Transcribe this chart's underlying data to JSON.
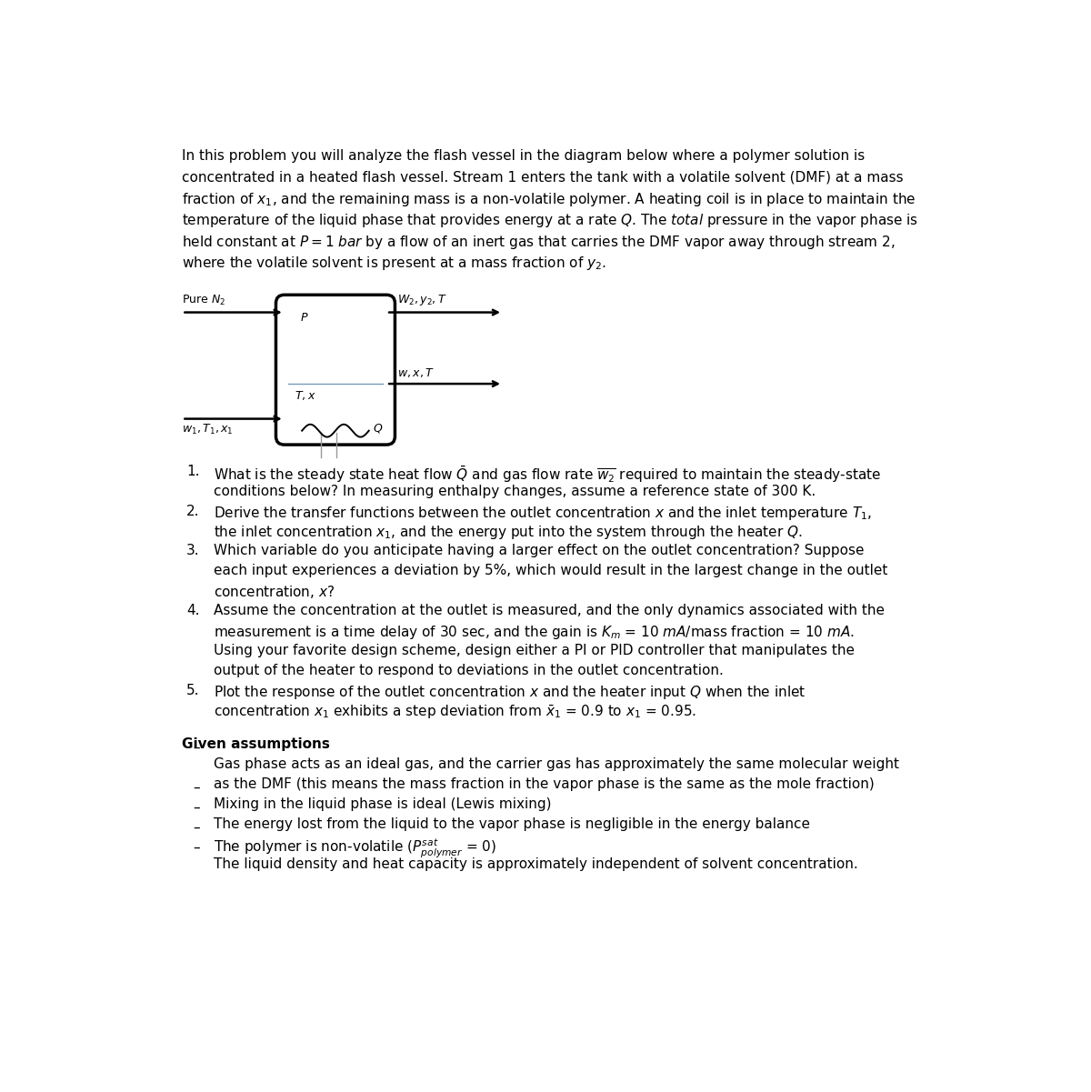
{
  "bg_color": "#ffffff",
  "text_color": "#000000",
  "fs_body": 11.0,
  "fs_small": 9.5,
  "fs_diagram": 9.0,
  "intro_lines": [
    "In this problem you will analyze the flash vessel in the diagram below where a polymer solution is",
    "concentrated in a heated flash vessel. Stream 1 enters the tank with a volatile solvent (DMF) at a mass",
    "fraction of $x_1$, and the remaining mass is a non-volatile polymer. A heating coil is in place to maintain the",
    "temperature of the liquid phase that provides energy at a rate $Q$. The $\\mathit{total}$ pressure in the vapor phase is",
    "held constant at $P = 1$ $\\mathit{bar}$ by a flow of an inert gas that carries the DMF vapor away through stream 2,",
    "where the volatile solvent is present at a mass fraction of $y_2$."
  ],
  "questions": [
    [
      1,
      "What is the steady state heat flow $\\bar{Q}$ and gas flow rate $\\overline{w_2}$ required to maintain the steady-state"
    ],
    [
      null,
      "conditions below? In measuring enthalpy changes, assume a reference state of 300 K."
    ],
    [
      2,
      "Derive the transfer functions between the outlet concentration $x$ and the inlet temperature $T_1$,"
    ],
    [
      null,
      "the inlet concentration $x_1$, and the energy put into the system through the heater $Q$."
    ],
    [
      3,
      "Which variable do you anticipate having a larger effect on the outlet concentration? Suppose"
    ],
    [
      null,
      "each input experiences a deviation by 5%, which would result in the largest change in the outlet"
    ],
    [
      null,
      "concentration, $x$?"
    ],
    [
      4,
      "Assume the concentration at the outlet is measured, and the only dynamics associated with the"
    ],
    [
      null,
      "measurement is a time delay of 30 sec, and the gain is $K_m$ = 10 $mA$/mass fraction = 10 $mA$."
    ],
    [
      null,
      "Using your favorite design scheme, design either a PI or PID controller that manipulates the"
    ],
    [
      null,
      "output of the heater to respond to deviations in the outlet concentration."
    ],
    [
      5,
      "Plot the response of the outlet concentration $x$ and the heater input $Q$ when the inlet"
    ],
    [
      null,
      "concentration $x_1$ exhibits a step deviation from $\\bar{x}_1$ = 0.9 to $x_1$ = 0.95."
    ]
  ],
  "assumptions": [
    "Gas phase acts as an ideal gas, and the carrier gas has approximately the same molecular weight",
    "INDENT as the DMF (this means the mass fraction in the vapor phase is the same as the mole fraction)",
    "Mixing in the liquid phase is ideal (Lewis mixing)",
    "The energy lost from the liquid to the vapor phase is negligible in the energy balance",
    "The polymer is non-volatile ($P^{sat}_{polymer}$ = 0)",
    "The liquid density and heat capacity is approximately independent of solvent concentration."
  ]
}
